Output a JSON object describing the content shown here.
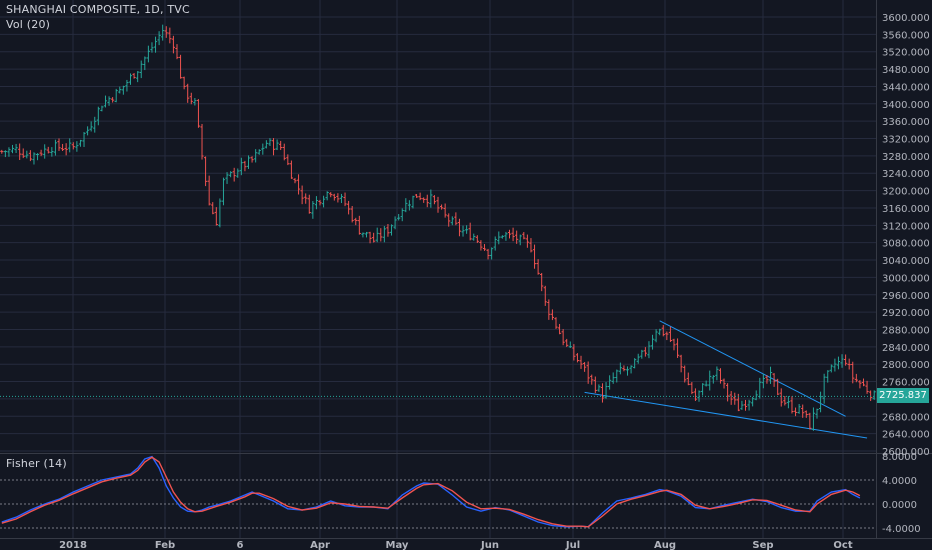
{
  "header": {
    "title": "SHANGHAI COMPOSITE, 1D, TVC",
    "volume_label": "Vol (20)",
    "indicator_label": "Fisher (14)"
  },
  "last_price": {
    "value": 2725.837,
    "label": "2725.837",
    "color": "#26a69a"
  },
  "colors": {
    "background": "#131722",
    "grid": "#262b3e",
    "up": "#26a69a",
    "down": "#ef5350",
    "trendline": "#2196f3",
    "fisher_line": "#2962ff",
    "trigger_line": "#ef5350"
  },
  "chart_data": [
    {
      "type": "ohlc",
      "title": "SHANGHAI COMPOSITE, 1D, TVC",
      "x_labels": [
        "2018",
        "Feb",
        "6",
        "Apr",
        "May",
        "Jun",
        "Jul",
        "Aug",
        "Sep",
        "Oct"
      ],
      "y_ticks": [
        "3600.000",
        "3560.000",
        "3520.000",
        "3480.000",
        "3440.000",
        "3400.000",
        "3360.000",
        "3320.000",
        "3280.000",
        "3240.000",
        "3200.000",
        "3160.000",
        "3120.000",
        "3080.000",
        "3040.000",
        "3000.000",
        "2960.000",
        "2920.000",
        "2880.000",
        "2840.000",
        "2800.000",
        "2760.000",
        "2720.000",
        "2680.000",
        "2640.000",
        "2600.000"
      ],
      "y_range": [
        2600,
        3600
      ],
      "grid": true,
      "close_path": [
        [
          0,
          3290
        ],
        [
          4,
          3295
        ],
        [
          8,
          3280
        ],
        [
          14,
          3300
        ],
        [
          20,
          3300
        ],
        [
          24,
          3340
        ],
        [
          28,
          3400
        ],
        [
          33,
          3430
        ],
        [
          38,
          3480
        ],
        [
          42,
          3530
        ],
        [
          45,
          3570
        ],
        [
          48,
          3540
        ],
        [
          51,
          3430
        ],
        [
          54,
          3400
        ],
        [
          56,
          3280
        ],
        [
          58,
          3170
        ],
        [
          60,
          3130
        ],
        [
          62,
          3220
        ],
        [
          66,
          3250
        ],
        [
          70,
          3270
        ],
        [
          74,
          3310
        ],
        [
          78,
          3300
        ],
        [
          80,
          3260
        ],
        [
          82,
          3220
        ],
        [
          86,
          3160
        ],
        [
          90,
          3190
        ],
        [
          92,
          3200
        ],
        [
          96,
          3170
        ],
        [
          100,
          3110
        ],
        [
          104,
          3085
        ],
        [
          108,
          3110
        ],
        [
          112,
          3160
        ],
        [
          116,
          3190
        ],
        [
          120,
          3180
        ],
        [
          124,
          3140
        ],
        [
          128,
          3110
        ],
        [
          132,
          3095
        ],
        [
          136,
          3060
        ],
        [
          140,
          3100
        ],
        [
          144,
          3090
        ],
        [
          148,
          3070
        ],
        [
          150,
          3010
        ],
        [
          152,
          2940
        ],
        [
          155,
          2890
        ],
        [
          158,
          2840
        ],
        [
          162,
          2800
        ],
        [
          165,
          2760
        ],
        [
          168,
          2730
        ],
        [
          172,
          2780
        ],
        [
          176,
          2790
        ],
        [
          180,
          2830
        ],
        [
          183,
          2880
        ],
        [
          186,
          2870
        ],
        [
          188,
          2840
        ],
        [
          191,
          2770
        ],
        [
          194,
          2720
        ],
        [
          197,
          2760
        ],
        [
          200,
          2780
        ],
        [
          203,
          2730
        ],
        [
          206,
          2700
        ],
        [
          209,
          2720
        ],
        [
          212,
          2750
        ],
        [
          215,
          2770
        ],
        [
          218,
          2720
        ],
        [
          221,
          2700
        ],
        [
          224,
          2690
        ],
        [
          226,
          2660
        ],
        [
          228,
          2700
        ],
        [
          230,
          2760
        ],
        [
          233,
          2800
        ],
        [
          236,
          2810
        ],
        [
          238,
          2770
        ],
        [
          241,
          2750
        ],
        [
          244,
          2726
        ]
      ],
      "trendlines": [
        {
          "from": [
            184,
            2900
          ],
          "to": [
            236,
            2680
          ]
        },
        {
          "from": [
            163,
            2735
          ],
          "to": [
            242,
            2630
          ]
        }
      ]
    },
    {
      "type": "line",
      "title": "Fisher (14)",
      "y_ticks": [
        "8.0000",
        "4.0000",
        "0.0000",
        "-4.0000"
      ],
      "y_range": [
        -4.6,
        8.4
      ],
      "reference_lines": [
        4,
        0,
        -4
      ],
      "series": [
        {
          "color": "#2962ff",
          "values": [
            [
              0,
              -3.0
            ],
            [
              4,
              -2.2
            ],
            [
              8,
              -1.0
            ],
            [
              12,
              0
            ],
            [
              16,
              0.8
            ],
            [
              20,
              2
            ],
            [
              24,
              3
            ],
            [
              28,
              4
            ],
            [
              32,
              4.5
            ],
            [
              36,
              5
            ],
            [
              38,
              6
            ],
            [
              40,
              7.5
            ],
            [
              42,
              7.9
            ],
            [
              44,
              6
            ],
            [
              46,
              3
            ],
            [
              48,
              1
            ],
            [
              50,
              -0.5
            ],
            [
              52,
              -1.2
            ],
            [
              54,
              -1.3
            ],
            [
              56,
              -1
            ],
            [
              58,
              -0.5
            ],
            [
              60,
              -0.2
            ],
            [
              64,
              0.5
            ],
            [
              68,
              1.5
            ],
            [
              70,
              2
            ],
            [
              72,
              1.5
            ],
            [
              76,
              0.5
            ],
            [
              80,
              -0.8
            ],
            [
              84,
              -1
            ],
            [
              88,
              -0.5
            ],
            [
              92,
              0.5
            ],
            [
              96,
              -0.3
            ],
            [
              100,
              -0.5
            ],
            [
              104,
              -0.5
            ],
            [
              108,
              -0.8
            ],
            [
              112,
              1.5
            ],
            [
              116,
              3
            ],
            [
              118,
              3.5
            ],
            [
              122,
              3.3
            ],
            [
              126,
              1.5
            ],
            [
              130,
              -0.5
            ],
            [
              134,
              -1.2
            ],
            [
              138,
              -0.6
            ],
            [
              142,
              -1
            ],
            [
              146,
              -2
            ],
            [
              150,
              -3
            ],
            [
              154,
              -3.6
            ],
            [
              158,
              -3.8
            ],
            [
              162,
              -3.7
            ],
            [
              164,
              -3.8
            ],
            [
              168,
              -1.5
            ],
            [
              172,
              0.5
            ],
            [
              176,
              1
            ],
            [
              180,
              1.6
            ],
            [
              184,
              2.4
            ],
            [
              186,
              2.2
            ],
            [
              190,
              1.3
            ],
            [
              194,
              -0.6
            ],
            [
              198,
              -0.8
            ],
            [
              202,
              -0.2
            ],
            [
              206,
              0.3
            ],
            [
              210,
              0.8
            ],
            [
              214,
              0.4
            ],
            [
              218,
              -0.6
            ],
            [
              222,
              -1.2
            ],
            [
              226,
              -1.2
            ],
            [
              228,
              0.5
            ],
            [
              232,
              2
            ],
            [
              236,
              2.4
            ],
            [
              238,
              1.6
            ],
            [
              240,
              1
            ]
          ]
        },
        {
          "color": "#ef5350",
          "values": [
            [
              0,
              -3.2
            ],
            [
              4,
              -2.5
            ],
            [
              8,
              -1.3
            ],
            [
              12,
              -0.2
            ],
            [
              16,
              0.6
            ],
            [
              20,
              1.7
            ],
            [
              24,
              2.7
            ],
            [
              28,
              3.7
            ],
            [
              32,
              4.3
            ],
            [
              36,
              4.8
            ],
            [
              38,
              5.6
            ],
            [
              40,
              7.0
            ],
            [
              42,
              7.8
            ],
            [
              44,
              7
            ],
            [
              46,
              4.5
            ],
            [
              48,
              2
            ],
            [
              50,
              0.3
            ],
            [
              52,
              -0.8
            ],
            [
              54,
              -1.3
            ],
            [
              56,
              -1.2
            ],
            [
              58,
              -0.8
            ],
            [
              60,
              -0.4
            ],
            [
              64,
              0.3
            ],
            [
              68,
              1.2
            ],
            [
              70,
              1.8
            ],
            [
              72,
              1.8
            ],
            [
              76,
              0.9
            ],
            [
              80,
              -0.4
            ],
            [
              84,
              -1
            ],
            [
              88,
              -0.7
            ],
            [
              92,
              0.2
            ],
            [
              96,
              0
            ],
            [
              100,
              -0.4
            ],
            [
              104,
              -0.5
            ],
            [
              108,
              -0.7
            ],
            [
              112,
              1
            ],
            [
              116,
              2.6
            ],
            [
              118,
              3.2
            ],
            [
              122,
              3.4
            ],
            [
              126,
              2.2
            ],
            [
              130,
              0.3
            ],
            [
              134,
              -0.8
            ],
            [
              138,
              -0.7
            ],
            [
              142,
              -0.9
            ],
            [
              146,
              -1.7
            ],
            [
              150,
              -2.6
            ],
            [
              154,
              -3.3
            ],
            [
              158,
              -3.7
            ],
            [
              162,
              -3.7
            ],
            [
              164,
              -3.8
            ],
            [
              168,
              -2
            ],
            [
              172,
              0
            ],
            [
              176,
              0.8
            ],
            [
              180,
              1.4
            ],
            [
              184,
              2.1
            ],
            [
              186,
              2.3
            ],
            [
              190,
              1.6
            ],
            [
              194,
              -0.2
            ],
            [
              198,
              -0.8
            ],
            [
              202,
              -0.4
            ],
            [
              206,
              0.1
            ],
            [
              210,
              0.7
            ],
            [
              214,
              0.6
            ],
            [
              218,
              -0.2
            ],
            [
              222,
              -1
            ],
            [
              226,
              -1.3
            ],
            [
              228,
              0
            ],
            [
              232,
              1.6
            ],
            [
              236,
              2.3
            ],
            [
              238,
              2
            ],
            [
              240,
              1.4
            ]
          ]
        }
      ]
    }
  ]
}
